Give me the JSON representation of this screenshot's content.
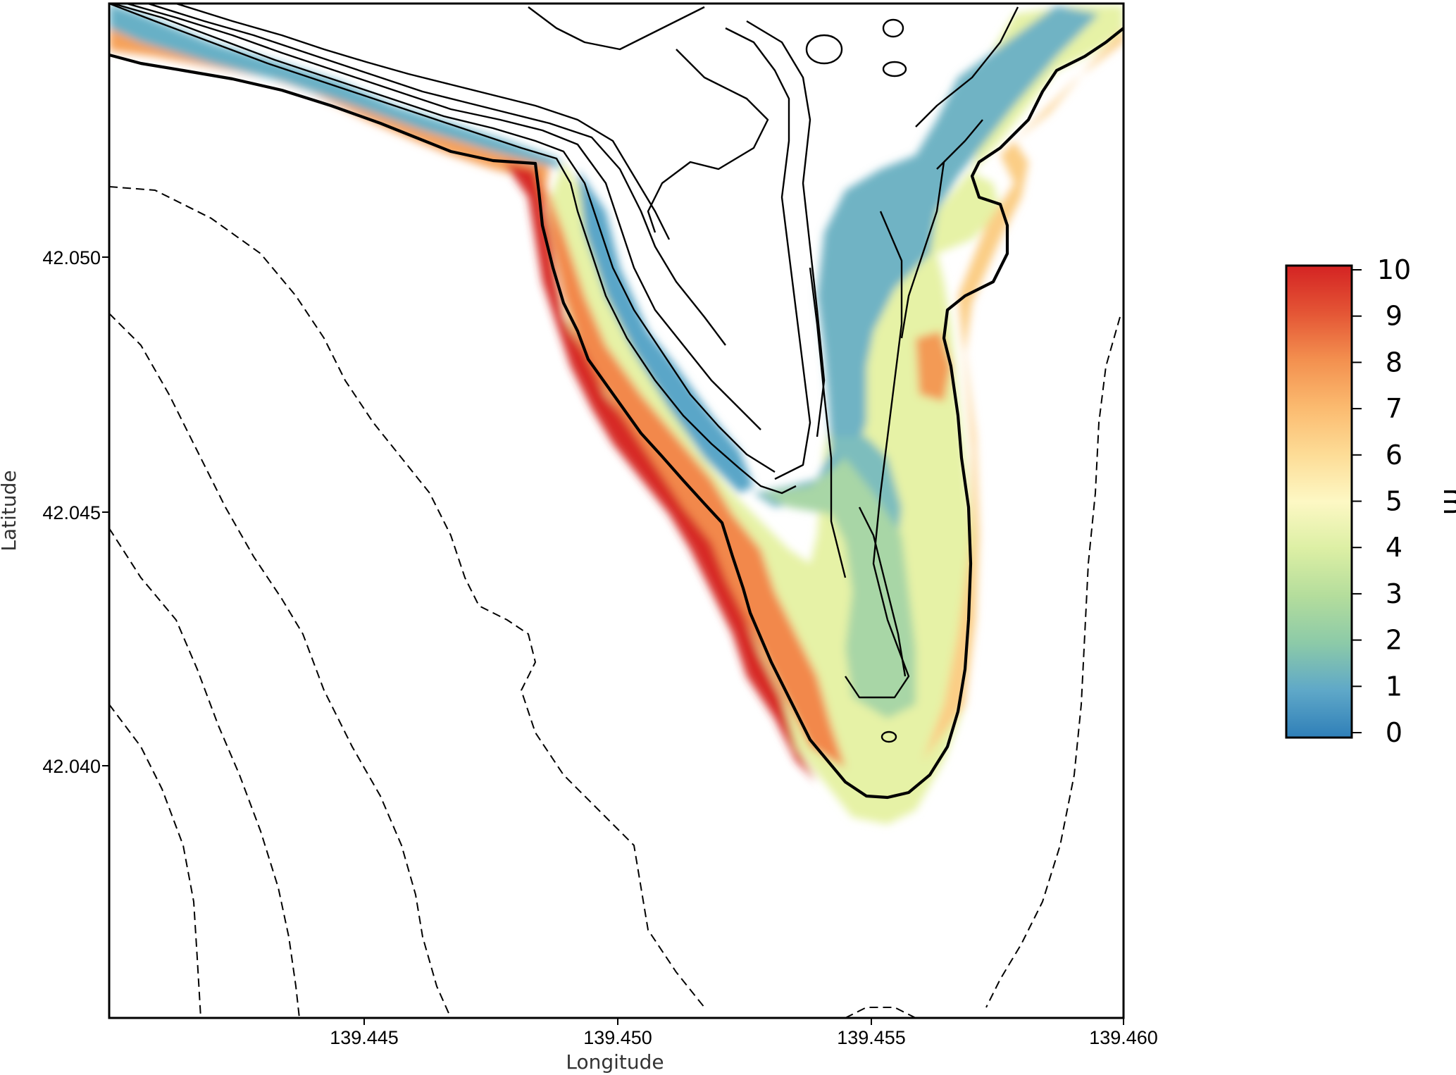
{
  "chart_data": {
    "type": "heatmap",
    "title": "",
    "xlabel": "Longitude",
    "ylabel": "Latitude",
    "xlim": [
      139.44,
      139.46
    ],
    "ylim": [
      42.035,
      42.055
    ],
    "xticks": [
      "139.445",
      "139.450",
      "139.455",
      "139.460"
    ],
    "yticks": [
      "42.040",
      "42.045",
      "42.050"
    ],
    "colorbar": {
      "unit": "m",
      "min": 0,
      "max": 10,
      "ticks": [
        "10",
        "9",
        "8",
        "7",
        "6",
        "5",
        "4",
        "3",
        "2",
        "1",
        "0"
      ],
      "colormap": [
        "#2f7fb8",
        "#67b0cd",
        "#a8d8a4",
        "#e0efa8",
        "#fef9c3",
        "#fcd58b",
        "#f7a05a",
        "#e6552f",
        "#d42323"
      ]
    },
    "overlays": {
      "solid_contours": "terrain elevation",
      "bold_contour": "inundation limit",
      "dashed_contours": "offshore bathymetry"
    }
  }
}
